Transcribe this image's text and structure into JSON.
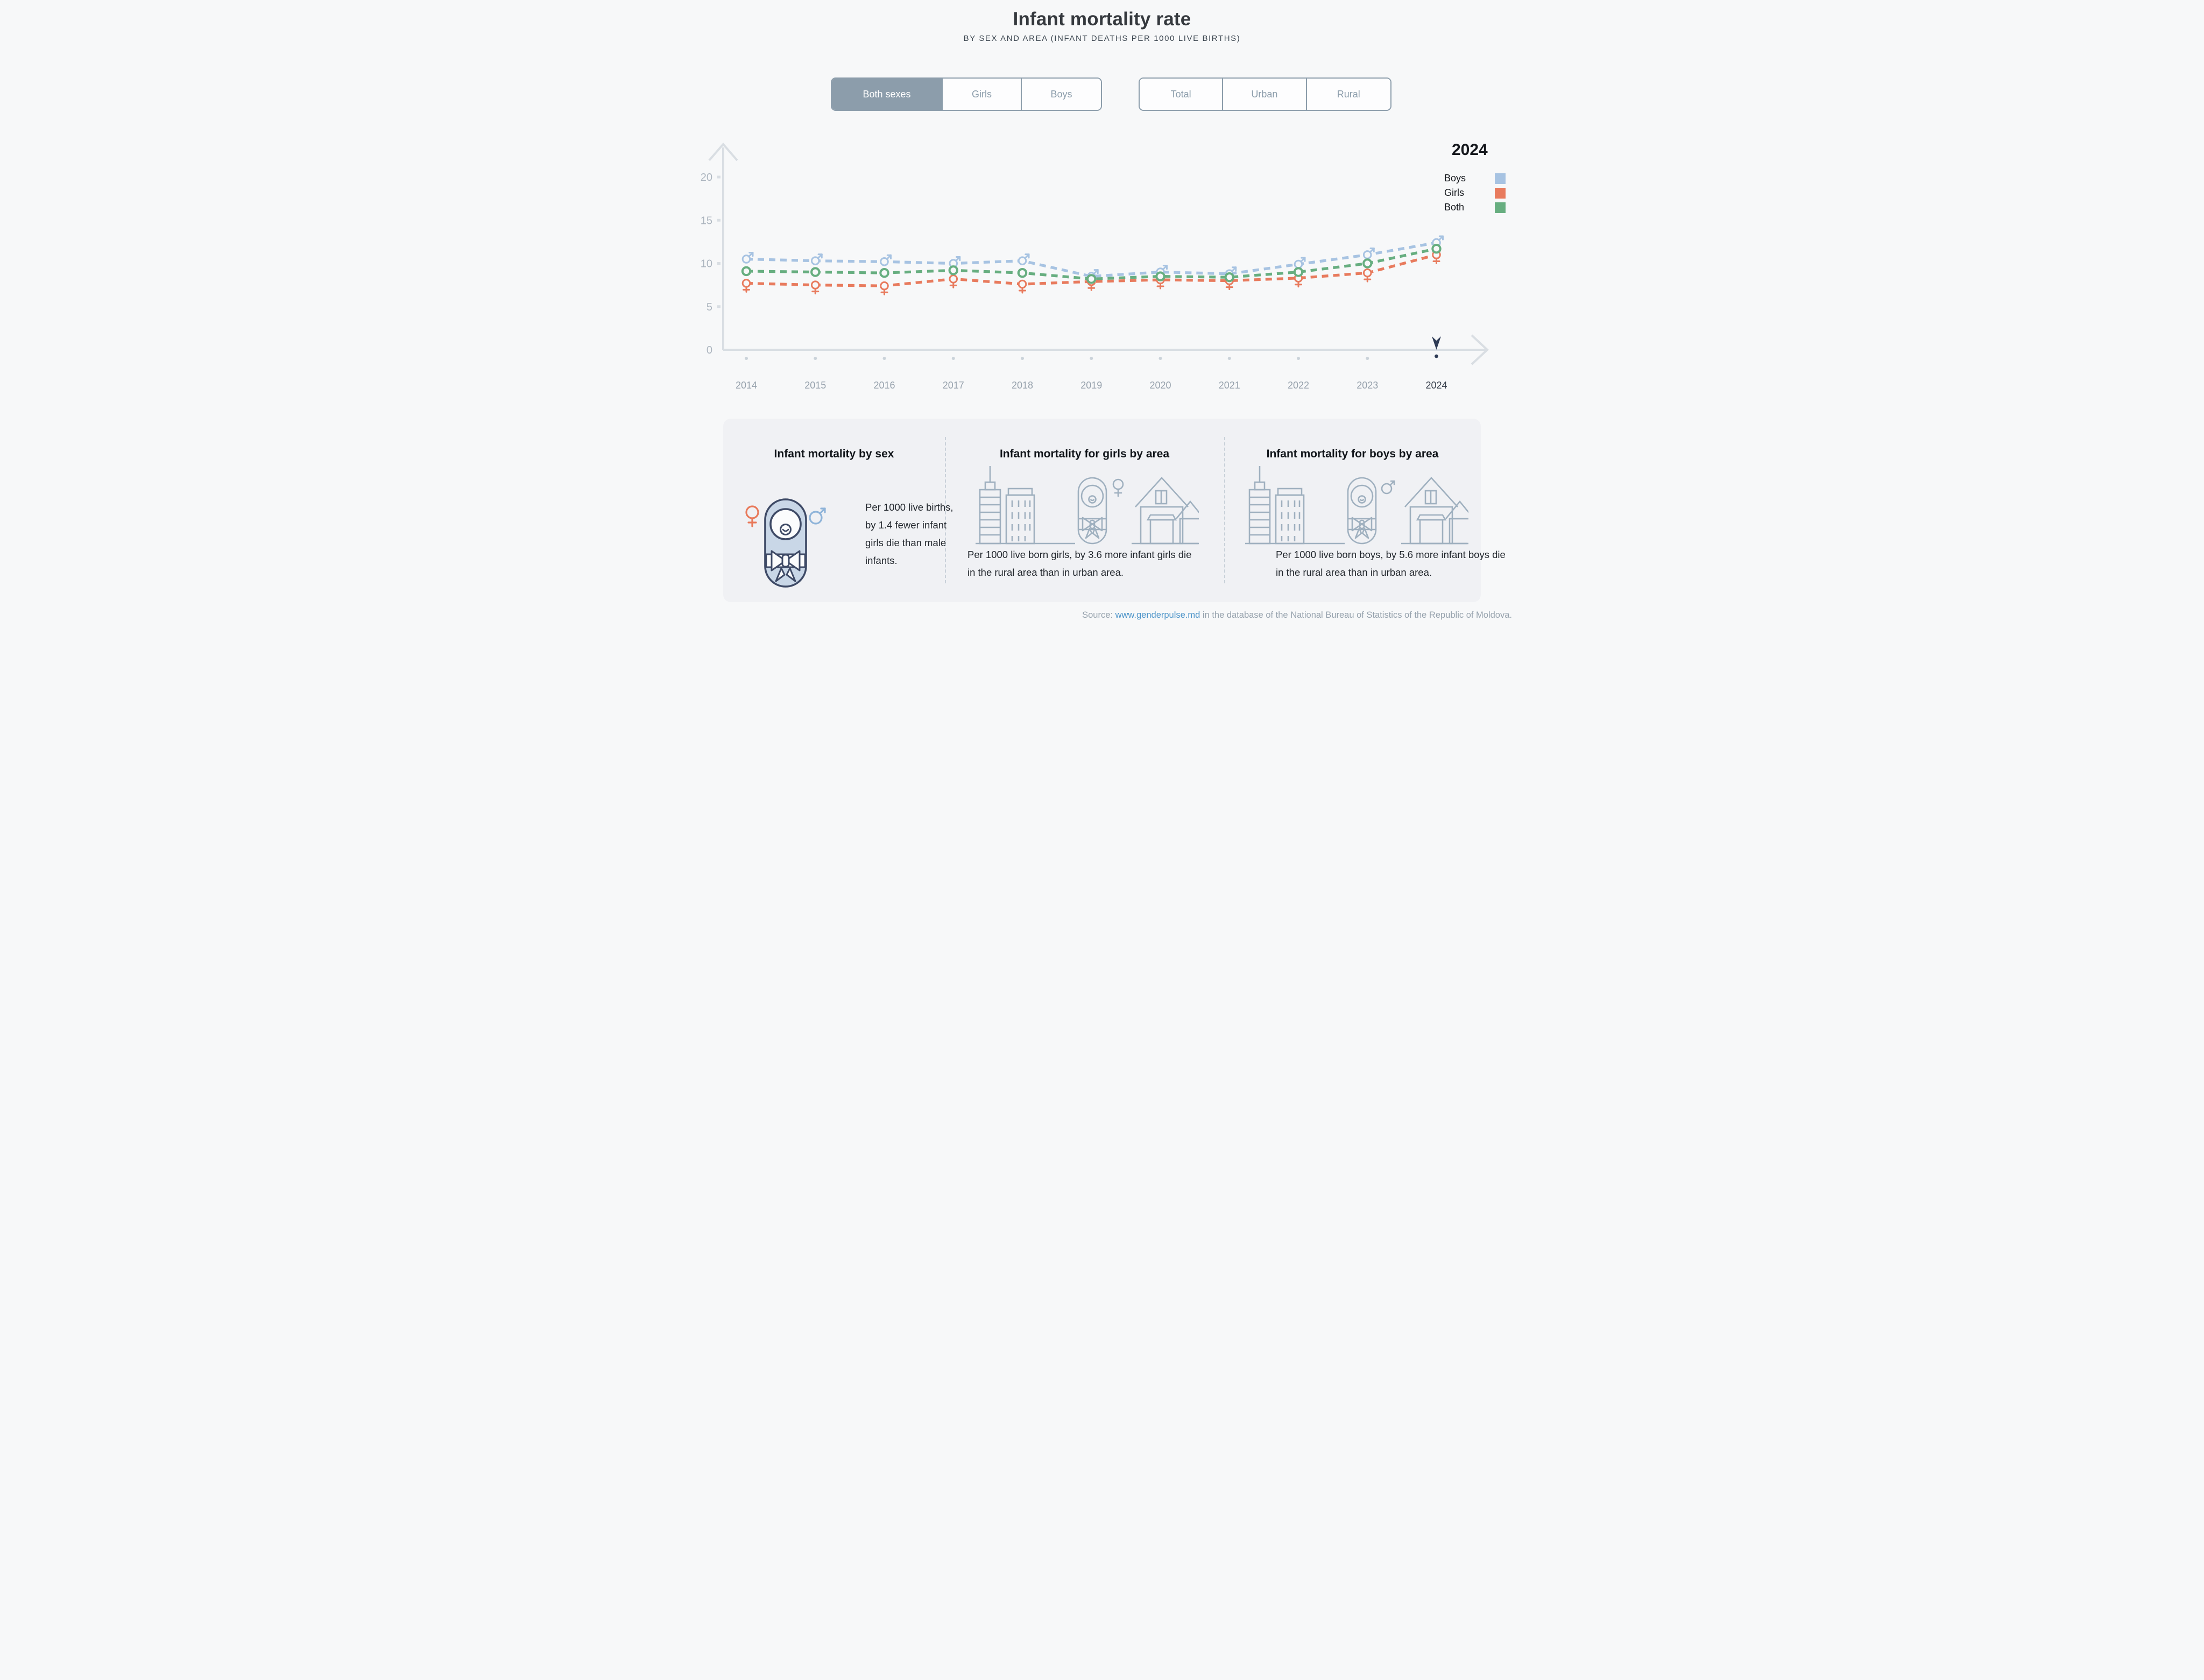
{
  "header": {
    "title": "Infant mortality rate",
    "subtitle": "BY SEX AND AREA (INFANT DEATHS PER 1000 LIVE BIRTHS)"
  },
  "toggles": {
    "sex": {
      "options": [
        "Both sexes",
        "Girls",
        "Boys"
      ],
      "active": "Both sexes"
    },
    "area": {
      "options": [
        "Total",
        "Urban",
        "Rural"
      ],
      "active": ""
    }
  },
  "legend": {
    "year": "2024",
    "items": [
      {
        "label": "Boys",
        "color": "#a7c3e2"
      },
      {
        "label": "Girls",
        "color": "#e87b5e"
      },
      {
        "label": "Both",
        "color": "#67ae80"
      }
    ]
  },
  "chart_data": {
    "type": "line",
    "title": "Infant mortality rate",
    "xlabel": "",
    "ylabel": "",
    "x": [
      2014,
      2015,
      2016,
      2017,
      2018,
      2019,
      2020,
      2021,
      2022,
      2023,
      2024
    ],
    "ylim": [
      0,
      20
    ],
    "yticks": [
      0,
      5,
      10,
      15,
      20
    ],
    "grid": false,
    "legend_position": "top-right",
    "selected_year": 2024,
    "line_style": "dashed",
    "marker_styles": {
      "Boys": "male-symbol",
      "Girls": "female-symbol",
      "Both": "circle"
    },
    "series": [
      {
        "name": "Boys",
        "color": "#a7c3e2",
        "values": [
          10.5,
          10.3,
          10.2,
          10.0,
          10.3,
          8.5,
          9.0,
          8.8,
          9.9,
          11.0,
          12.4
        ]
      },
      {
        "name": "Girls",
        "color": "#e87b5e",
        "values": [
          7.7,
          7.5,
          7.4,
          8.2,
          7.6,
          7.9,
          8.1,
          8.0,
          8.3,
          8.9,
          11.0
        ]
      },
      {
        "name": "Both",
        "color": "#67ae80",
        "values": [
          9.1,
          9.0,
          8.9,
          9.2,
          8.9,
          8.2,
          8.5,
          8.4,
          9.0,
          10.0,
          11.7
        ]
      }
    ]
  },
  "cards": [
    {
      "title": "Infant mortality by sex",
      "text_lines": [
        "Per 1000 live births,",
        "by 1.4 fewer infant",
        "girls die than male",
        "infants."
      ]
    },
    {
      "title": "Infant mortality for girls by area",
      "text_lines": [
        "Per 1000 live born girls, by 3.6 more infant girls die",
        "in the rural area than in urban area."
      ]
    },
    {
      "title": "Infant mortality for boys by area",
      "text_lines": [
        "Per 1000 live born boys, by 5.6 more infant boys die",
        "in the rural area than in urban area."
      ]
    }
  ],
  "source": {
    "prefix": "Source: ",
    "link": "www.genderpulse.md",
    "suffix": " in the database of the National Bureau of Statistics of the Republic of Moldova."
  },
  "colors": {
    "background": "#f7f8f9",
    "card_background": "#f0f1f4",
    "axis": "#d9dee3",
    "tick_text": "#acb5bf",
    "year_text": "#97a2ad",
    "selected_year_text": "#39414e",
    "selected_pin": "#2e3b55",
    "toggle_active": "#8c9dab",
    "link": "#4c94c9"
  }
}
